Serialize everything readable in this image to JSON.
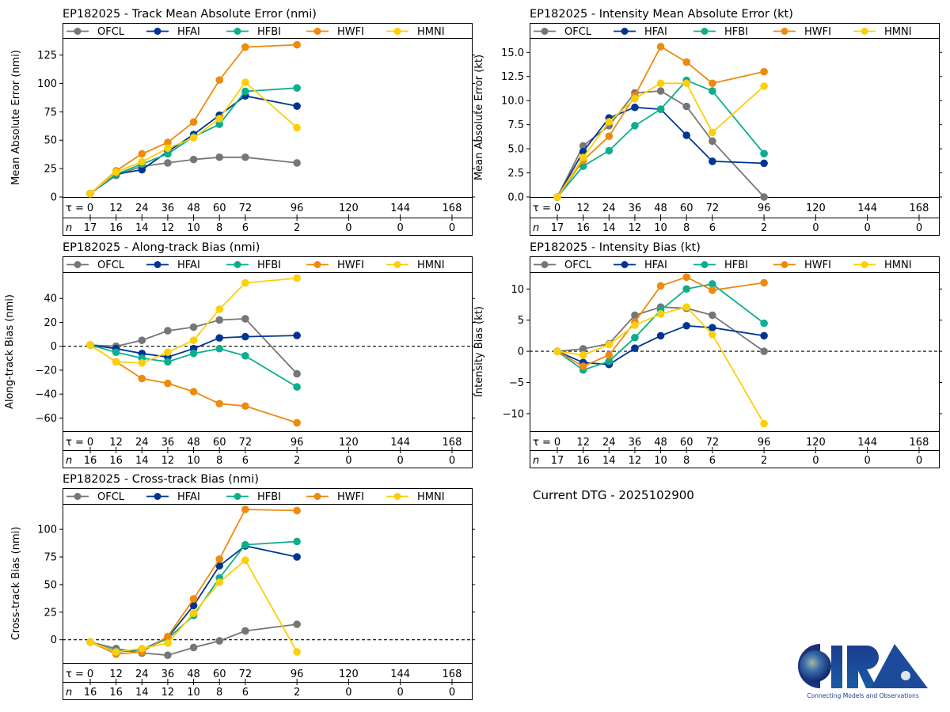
{
  "page": {
    "dtg_label": "Current DTG - 2025102900"
  },
  "series_style": [
    {
      "name": "OFCL",
      "color": "#767676"
    },
    {
      "name": "HFAI",
      "color": "#003594"
    },
    {
      "name": "HFBI",
      "color": "#0cae8e"
    },
    {
      "name": "HWFI",
      "color": "#ee8a0c"
    },
    {
      "name": "HMNI",
      "color": "#fdcf08"
    }
  ],
  "tau_label": "τ = ",
  "n_label": "n",
  "chart_data": [
    {
      "id": "track-mae",
      "type": "line",
      "title": "EP182025 - Track Mean Absolute Error (nmi)",
      "ylabel": "Mean Absolute Error (nmi)",
      "xlabel": "",
      "x": [
        0,
        12,
        24,
        36,
        48,
        60,
        72,
        96
      ],
      "tau_ticks": [
        0,
        12,
        24,
        36,
        48,
        60,
        72,
        96,
        120,
        144,
        168
      ],
      "n": [
        17,
        16,
        14,
        12,
        10,
        8,
        6,
        2,
        0,
        0,
        0
      ],
      "yticks": [
        0,
        25,
        50,
        75,
        100,
        125
      ],
      "ytick_labels": [
        "0",
        "25",
        "50",
        "75",
        "100",
        "125"
      ],
      "ylim": [
        0,
        140
      ],
      "zero_line": false,
      "legend": "top",
      "series": [
        {
          "name": "OFCL",
          "values": [
            3,
            19,
            27,
            30,
            33,
            35,
            35,
            30
          ]
        },
        {
          "name": "HFAI",
          "values": [
            3,
            20,
            24,
            40,
            55,
            72,
            89,
            80
          ]
        },
        {
          "name": "HFBI",
          "values": [
            3,
            20,
            29,
            38,
            53,
            64,
            93,
            96
          ]
        },
        {
          "name": "HWFI",
          "values": [
            3,
            23,
            38,
            48,
            66,
            103,
            132,
            134
          ]
        },
        {
          "name": "HMNI",
          "values": [
            3,
            22,
            31,
            43,
            52,
            69,
            101,
            61
          ]
        }
      ]
    },
    {
      "id": "intensity-mae",
      "type": "line",
      "title": "EP182025 - Intensity Mean Absolute Error (kt)",
      "ylabel": "Mean Absolute Error (kt)",
      "xlabel": "",
      "x": [
        0,
        12,
        24,
        36,
        48,
        60,
        72,
        96
      ],
      "tau_ticks": [
        0,
        12,
        24,
        36,
        48,
        60,
        72,
        96,
        120,
        144,
        168
      ],
      "n": [
        17,
        16,
        14,
        12,
        10,
        8,
        6,
        2,
        0,
        0,
        0
      ],
      "yticks": [
        0,
        2.5,
        5,
        7.5,
        10,
        12.5,
        15
      ],
      "ytick_labels": [
        "0.0",
        "2.5",
        "5.0",
        "7.5",
        "10.0",
        "12.5",
        "15.0"
      ],
      "ylim": [
        0,
        16.5
      ],
      "zero_line": false,
      "legend": "top",
      "series": [
        {
          "name": "OFCL",
          "values": [
            0,
            5.3,
            7.4,
            10.8,
            11.0,
            9.4,
            5.8,
            0
          ]
        },
        {
          "name": "HFAI",
          "values": [
            0,
            4.7,
            8.2,
            9.3,
            9.1,
            6.4,
            3.7,
            3.5
          ]
        },
        {
          "name": "HFBI",
          "values": [
            0,
            3.2,
            4.8,
            7.4,
            9.1,
            12.1,
            11.0,
            4.5
          ]
        },
        {
          "name": "HWFI",
          "values": [
            0,
            3.8,
            6.3,
            10.5,
            15.6,
            14.0,
            11.8,
            13.0
          ]
        },
        {
          "name": "HMNI",
          "values": [
            0,
            4.1,
            7.8,
            10.2,
            11.8,
            11.8,
            6.7,
            11.5
          ]
        }
      ]
    },
    {
      "id": "along-track-bias",
      "type": "line",
      "title": "EP182025 - Along-track Bias (nmi)",
      "ylabel": "Along-track Bias (nmi)",
      "xlabel": "",
      "x": [
        0,
        12,
        24,
        36,
        48,
        60,
        72,
        96
      ],
      "tau_ticks": [
        0,
        12,
        24,
        36,
        48,
        60,
        72,
        96,
        120,
        144,
        168
      ],
      "n": [
        16,
        16,
        14,
        12,
        10,
        8,
        6,
        2,
        0,
        0,
        0
      ],
      "yticks": [
        -60,
        -40,
        -20,
        0,
        20,
        40
      ],
      "ytick_labels": [
        "−60",
        "−40",
        "−20",
        "0",
        "20",
        "40"
      ],
      "ylim": [
        -71,
        62
      ],
      "zero_line": true,
      "legend": "top",
      "series": [
        {
          "name": "OFCL",
          "values": [
            1,
            0,
            5,
            13,
            16,
            22,
            23,
            -23
          ]
        },
        {
          "name": "HFAI",
          "values": [
            1,
            -2,
            -6,
            -9,
            -2,
            7,
            8,
            9
          ]
        },
        {
          "name": "HFBI",
          "values": [
            1,
            -5,
            -10,
            -13,
            -6,
            -2,
            -8,
            -34
          ]
        },
        {
          "name": "HWFI",
          "values": [
            1,
            -13,
            -27,
            -31,
            -38,
            -48,
            -50,
            -64
          ]
        },
        {
          "name": "HMNI",
          "values": [
            1,
            -13,
            -14,
            -5,
            5,
            31,
            53,
            57
          ]
        }
      ]
    },
    {
      "id": "intensity-bias",
      "type": "line",
      "title": "EP182025 - Intensity Bias (kt)",
      "ylabel": "Intensity Bias (kt)",
      "xlabel": "",
      "x": [
        0,
        12,
        24,
        36,
        48,
        60,
        72,
        96
      ],
      "tau_ticks": [
        0,
        12,
        24,
        36,
        48,
        60,
        72,
        96,
        120,
        144,
        168
      ],
      "n": [
        17,
        16,
        14,
        12,
        10,
        8,
        6,
        2,
        0,
        0,
        0
      ],
      "yticks": [
        -10,
        -5,
        0,
        5,
        10
      ],
      "ytick_labels": [
        "−10",
        "−5",
        "0",
        "5",
        "10"
      ],
      "ylim": [
        -12.8,
        12.7
      ],
      "zero_line": true,
      "legend": "top",
      "series": [
        {
          "name": "OFCL",
          "values": [
            0,
            0.4,
            1.2,
            5.8,
            7.1,
            6.9,
            5.8,
            0
          ]
        },
        {
          "name": "HFAI",
          "values": [
            0,
            -1.8,
            -2.1,
            0.5,
            2.5,
            4.1,
            3.8,
            2.5
          ]
        },
        {
          "name": "HFBI",
          "values": [
            0,
            -3.0,
            -1.6,
            2.2,
            6.6,
            10.0,
            10.8,
            4.5
          ]
        },
        {
          "name": "HWFI",
          "values": [
            0,
            -2.4,
            -0.6,
            4.7,
            10.5,
            11.9,
            9.8,
            11.0
          ]
        },
        {
          "name": "HMNI",
          "values": [
            0,
            -0.6,
            1.1,
            4.2,
            6.0,
            7.1,
            2.7,
            -11.6
          ]
        }
      ]
    },
    {
      "id": "cross-track-bias",
      "type": "line",
      "title": "EP182025 - Cross-track Bias (nmi)",
      "ylabel": "Cross-track Bias (nmi)",
      "xlabel": "",
      "x": [
        0,
        12,
        24,
        36,
        48,
        60,
        72,
        96
      ],
      "tau_ticks": [
        0,
        12,
        24,
        36,
        48,
        60,
        72,
        96,
        120,
        144,
        168
      ],
      "n": [
        16,
        16,
        14,
        12,
        10,
        8,
        6,
        2,
        0,
        0,
        0
      ],
      "yticks": [
        0,
        25,
        50,
        75,
        100
      ],
      "ytick_labels": [
        "0",
        "25",
        "50",
        "75",
        "100"
      ],
      "ylim": [
        -21,
        123
      ],
      "zero_line": true,
      "legend": "top",
      "series": [
        {
          "name": "OFCL",
          "values": [
            -2,
            -8,
            -12,
            -14,
            -7,
            -1,
            8,
            14
          ]
        },
        {
          "name": "HFAI",
          "values": [
            -2,
            -11,
            -9,
            2,
            31,
            67,
            85,
            75
          ]
        },
        {
          "name": "HFBI",
          "values": [
            -2,
            -10,
            -9,
            1,
            22,
            56,
            86,
            89
          ]
        },
        {
          "name": "HWFI",
          "values": [
            -2,
            -13,
            -11,
            3,
            37,
            73,
            118,
            117
          ]
        },
        {
          "name": "HMNI",
          "values": [
            -2,
            -11,
            -8,
            -3,
            24,
            52,
            72,
            -11
          ]
        }
      ]
    }
  ],
  "logo": {
    "text": "CIRA",
    "tagline": "Connecting Models and Observations"
  }
}
